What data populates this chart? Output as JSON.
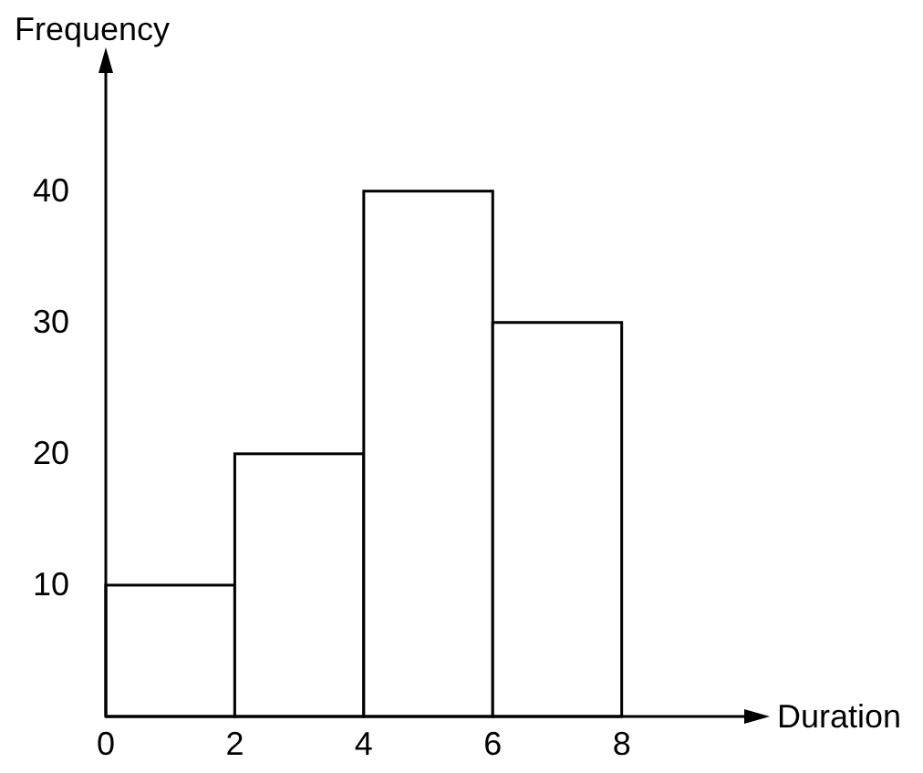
{
  "chart_data": {
    "type": "histogram",
    "xlabel": "Duration",
    "ylabel": "Frequency",
    "bins": [
      0,
      2,
      4,
      6,
      8
    ],
    "values": [
      10,
      20,
      40,
      30
    ],
    "color": "#ffffff",
    "xlim": [
      0,
      9.9
    ],
    "ylim": [
      0,
      49
    ],
    "xticks": [
      0,
      2,
      4,
      6,
      8
    ],
    "yticks": [
      10,
      20,
      30,
      40
    ],
    "grid": false
  }
}
